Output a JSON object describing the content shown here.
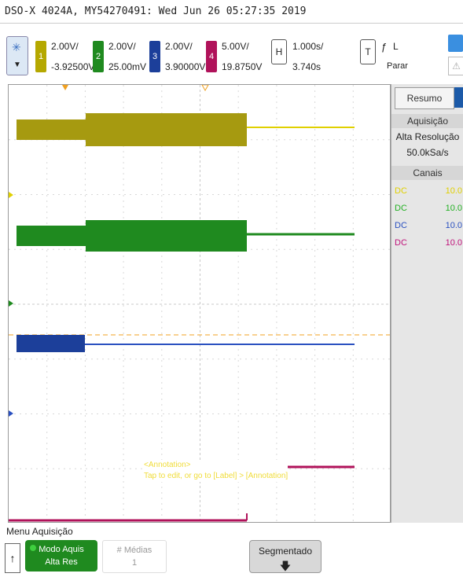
{
  "title": "DSO-X 4024A, MY54270491: Wed Jun 26 05:27:35 2019",
  "channels": [
    {
      "num": "1",
      "color": "#b5a800",
      "scale": "2.00V/",
      "offset": "-3.92500V"
    },
    {
      "num": "2",
      "color": "#1f8a1f",
      "scale": "2.00V/",
      "offset": "25.00mV"
    },
    {
      "num": "3",
      "color": "#1c3f9a",
      "scale": "2.00V/",
      "offset": "3.90000V"
    },
    {
      "num": "4",
      "color": "#b0125a",
      "scale": "5.00V/",
      "offset": "19.8750V"
    }
  ],
  "horizontal": {
    "btn": "H",
    "scale": "1.000s/",
    "delay": "3.740s"
  },
  "trigger": {
    "btn": "T",
    "slope": "ƒ",
    "mode": "L",
    "state": "Parar"
  },
  "side": {
    "tab": "Resumo",
    "acq_header": "Aquisição",
    "acq_mode": "Alta Resolução",
    "rate": "50.0kSa/s",
    "channels_header": "Canais",
    "rows": [
      {
        "coupling": "DC",
        "value": "10.0",
        "color": "#e0d000"
      },
      {
        "coupling": "DC",
        "value": "10.0",
        "color": "#22b022"
      },
      {
        "coupling": "DC",
        "value": "10.0",
        "color": "#2a50c0"
      },
      {
        "coupling": "DC",
        "value": "10.0",
        "color": "#c0127a"
      }
    ]
  },
  "annotation": {
    "line1": "<Annotation>",
    "line2": "Tap to edit, or go to [Label] > [Annotation]"
  },
  "menu": {
    "label": "Menu Aquisição",
    "mode_top": "Modo Aquis",
    "mode_bottom": "Alta Res",
    "avg_label": "# Médias",
    "avg_value": "1",
    "seg_label": "Segmentado"
  },
  "colors": {
    "ch1": "#b5a800",
    "ch2": "#1f8a1f",
    "ch3": "#1c3f9a",
    "ch4": "#b0125a",
    "trig": "#f0a020"
  }
}
